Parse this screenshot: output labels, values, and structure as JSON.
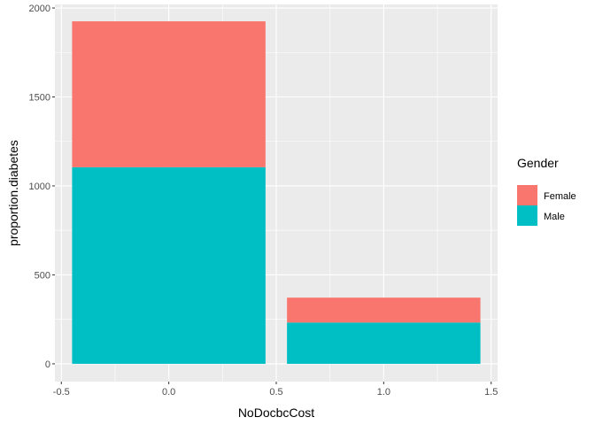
{
  "chart_data": {
    "type": "bar",
    "stacked": true,
    "xlabel": "NoDocbcCost",
    "ylabel": "proportion.diabetes",
    "x": [
      0,
      1
    ],
    "series": [
      {
        "name": "Female",
        "color": "#F8766D",
        "values": [
          820,
          140
        ]
      },
      {
        "name": "Male",
        "color": "#00BFC4",
        "values": [
          1105,
          232
        ]
      }
    ],
    "xlim": [
      -0.53,
      1.53
    ],
    "ylim": [
      -100,
      2020
    ],
    "x_ticks": [
      {
        "value": -0.5,
        "label": "-0.5"
      },
      {
        "value": 0.0,
        "label": "0.0"
      },
      {
        "value": 0.5,
        "label": "0.5"
      },
      {
        "value": 1.0,
        "label": "1.0"
      },
      {
        "value": 1.5,
        "label": "1.5"
      }
    ],
    "y_ticks": [
      {
        "value": 0,
        "label": "0"
      },
      {
        "value": 500,
        "label": "500"
      },
      {
        "value": 1000,
        "label": "1000"
      },
      {
        "value": 1500,
        "label": "1500"
      },
      {
        "value": 2000,
        "label": "2000"
      }
    ],
    "bar_width": 0.9,
    "grid": true,
    "panel_background": "#EBEBEB",
    "legend": {
      "title": "Gender",
      "placement": "right",
      "entries": [
        "Female",
        "Male"
      ]
    }
  }
}
